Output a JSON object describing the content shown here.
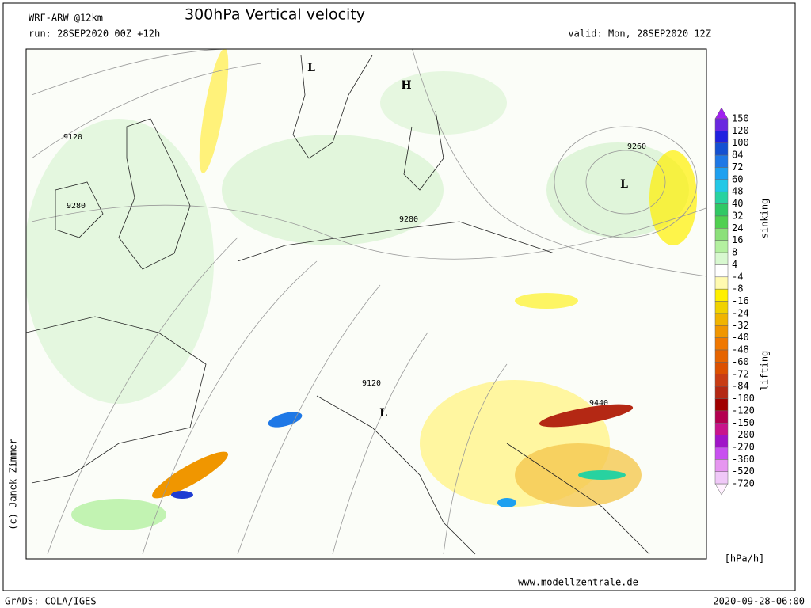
{
  "header": {
    "model": "WRF-ARW @12km",
    "title": "300hPa Vertical velocity",
    "run": "run: 28SEP2020 00Z +12h",
    "valid": "valid: Mon, 28SEP2020 12Z"
  },
  "map": {
    "contour_labels": [
      "9120",
      "9280",
      "9280",
      "9260",
      "9120",
      "9440"
    ],
    "pressure_centers": [
      "H",
      "L",
      "L",
      "L"
    ]
  },
  "colorbar": {
    "levels": [
      150,
      120,
      100,
      84,
      72,
      60,
      48,
      40,
      32,
      24,
      16,
      8,
      4,
      -4,
      -8,
      -16,
      -24,
      -32,
      -40,
      -48,
      -60,
      -72,
      -84,
      -100,
      -120,
      -150,
      -200,
      -270,
      -360,
      -520,
      -720
    ],
    "colors": [
      "#a020f0",
      "#6a28e0",
      "#2020e0",
      "#1450d2",
      "#1e78e6",
      "#1ea0f0",
      "#22c8e6",
      "#28d2a0",
      "#30c864",
      "#50d050",
      "#8ce07a",
      "#b4f0a0",
      "#d8f8d0",
      "#ffffff",
      "#fffab0",
      "#fff000",
      "#f0d200",
      "#f0b400",
      "#f09600",
      "#f07800",
      "#e66400",
      "#dc5000",
      "#c83c14",
      "#b42814",
      "#a00000",
      "#b40050",
      "#c8148c",
      "#a014c8",
      "#c850f0",
      "#e696f0",
      "#f0c8f8",
      "#fff0ff"
    ],
    "upper_label": "sinking",
    "lower_label": "lifting",
    "unit": "[hPa/h]"
  },
  "footer": {
    "copyright": "(c) Janek Zimmer",
    "website": "www.modellzentrale.de",
    "software": "GrADS: COLA/IGES",
    "timestamp": "2020-09-28-06:00"
  }
}
